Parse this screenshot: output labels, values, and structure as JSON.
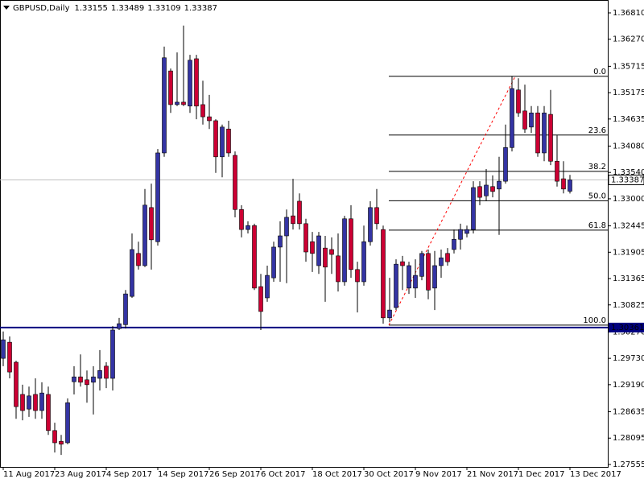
{
  "chart_data": {
    "type": "candlestick",
    "title": "GBPUSD,Daily",
    "categories": [
      "11 Aug 2017",
      null,
      null,
      null,
      null,
      null,
      null,
      null,
      "23 Aug 2017",
      null,
      null,
      null,
      null,
      null,
      null,
      null,
      "4 Sep 2017",
      null,
      null,
      null,
      null,
      null,
      null,
      null,
      "14 Sep 2017",
      null,
      null,
      null,
      null,
      null,
      null,
      null,
      "26 Sep 2017",
      null,
      null,
      null,
      null,
      null,
      null,
      null,
      "6 Oct 2017",
      null,
      null,
      null,
      null,
      null,
      null,
      null,
      "18 Oct 2017",
      null,
      null,
      null,
      null,
      null,
      null,
      null,
      "30 Oct 2017",
      null,
      null,
      null,
      null,
      null,
      null,
      null,
      "9 Nov 2017",
      null,
      null,
      null,
      null,
      null,
      null,
      null,
      "21 Nov 2017",
      null,
      null,
      null,
      null,
      null,
      null,
      null,
      "1 Dec 2017",
      null,
      null,
      null,
      null,
      null,
      null,
      null,
      "13 Dec 2017"
    ],
    "open": [
      1.2973,
      1.3006,
      1.2965,
      1.2899,
      1.2869,
      1.2899,
      1.2866,
      1.2899,
      1.2825,
      1.2803,
      1.28,
      1.2925,
      1.2935,
      1.2929,
      1.2924,
      1.2932,
      1.2957,
      1.2932,
      1.3034,
      1.3042,
      1.31,
      1.3188,
      1.3163,
      1.3282,
      1.3212,
      1.3394,
      1.3562,
      1.3493,
      1.3498,
      1.349,
      1.3587,
      1.3493,
      1.3468,
      1.346,
      1.3386,
      1.3443,
      1.3389,
      1.3278,
      1.3237,
      1.3245,
      1.312,
      1.3097,
      1.3138,
      1.3201,
      1.3224,
      1.3265,
      1.3295,
      1.3249,
      1.3212,
      1.3163,
      1.3199,
      1.3196,
      1.3183,
      1.313,
      1.3259,
      1.3155,
      1.313,
      1.3212,
      1.3282,
      1.3237,
      1.3056,
      1.3077,
      1.3171,
      1.3117,
      1.3117,
      1.3141,
      1.3188,
      1.3117,
      1.3163,
      1.3188,
      1.3196,
      1.3217,
      1.3229,
      1.3237,
      1.3325,
      1.3306,
      1.3325,
      1.332,
      1.3336,
      1.3405,
      1.3523,
      1.348,
      1.3447,
      1.3476,
      1.3394,
      1.3473,
      1.3377,
      1.3341,
      1.33155
    ],
    "high": [
      1.3028,
      1.3018,
      1.2968,
      1.2919,
      1.2915,
      1.2932,
      1.2924,
      1.2915,
      1.2841,
      1.2816,
      1.2891,
      1.2957,
      1.2981,
      1.2948,
      1.2957,
      1.299,
      1.2965,
      1.3039,
      1.3056,
      1.3113,
      1.3229,
      1.3212,
      1.332,
      1.3331,
      1.3402,
      1.3612,
      1.3567,
      1.36,
      1.3655,
      1.3595,
      1.3595,
      1.3542,
      1.3513,
      1.3463,
      1.3452,
      1.346,
      1.3397,
      1.3287,
      1.3254,
      1.3249,
      1.3146,
      1.3163,
      1.3212,
      1.3254,
      1.3278,
      1.3341,
      1.3311,
      1.3259,
      1.3232,
      1.3232,
      1.3224,
      1.3221,
      1.3229,
      1.3265,
      1.3287,
      1.3171,
      1.3245,
      1.3295,
      1.332,
      1.3245,
      1.3138,
      1.3176,
      1.3183,
      1.3171,
      1.3176,
      1.3193,
      1.3196,
      1.3193,
      1.3196,
      1.3199,
      1.3237,
      1.3249,
      1.3245,
      1.3336,
      1.3336,
      1.3361,
      1.3348,
      1.3386,
      1.3452,
      1.3551,
      1.3547,
      1.3534,
      1.349,
      1.349,
      1.349,
      1.3523,
      1.343,
      1.3377,
      1.33489
    ],
    "low": [
      1.2957,
      1.2932,
      1.2849,
      1.2846,
      1.2853,
      1.2849,
      1.2849,
      1.2816,
      1.278,
      1.2775,
      1.2797,
      1.2899,
      1.2915,
      1.2882,
      1.2858,
      1.2907,
      1.2912,
      1.2907,
      1.3031,
      1.3034,
      1.3097,
      1.3155,
      1.316,
      1.3155,
      1.3204,
      1.3386,
      1.3476,
      1.349,
      1.349,
      1.3476,
      1.3463,
      1.3452,
      1.3443,
      1.3353,
      1.3344,
      1.3386,
      1.3262,
      1.3221,
      1.3229,
      1.3113,
      1.3031,
      1.3089,
      1.313,
      1.313,
      1.3127,
      1.3237,
      1.3237,
      1.3171,
      1.315,
      1.3146,
      1.3089,
      1.3146,
      1.311,
      1.3122,
      1.3138,
      1.3067,
      1.3122,
      1.3204,
      1.3237,
      1.3044,
      1.3047,
      1.3072,
      1.3113,
      1.3105,
      1.3097,
      1.3133,
      1.3094,
      1.3072,
      1.3138,
      1.3163,
      1.3188,
      1.3196,
      1.3221,
      1.3229,
      1.3287,
      1.3295,
      1.3303,
      1.3226,
      1.3331,
      1.3397,
      1.3468,
      1.3435,
      1.3435,
      1.3386,
      1.3377,
      1.3369,
      1.3325,
      1.3311,
      1.33109
    ],
    "close": [
      1.3011,
      1.2945,
      1.2874,
      1.2866,
      1.2896,
      1.2866,
      1.2902,
      1.2825,
      1.28,
      1.2797,
      1.2882,
      1.2935,
      1.2924,
      1.2919,
      1.2935,
      1.2948,
      1.2932,
      1.3031,
      1.3044,
      1.3105,
      1.3196,
      1.3163,
      1.3287,
      1.3216,
      1.3394,
      1.3589,
      1.3493,
      1.3498,
      1.3493,
      1.3584,
      1.349,
      1.3468,
      1.346,
      1.3386,
      1.3447,
      1.3394,
      1.3278,
      1.3237,
      1.3245,
      1.3117,
      1.3069,
      1.3143,
      1.3201,
      1.3224,
      1.3262,
      1.3249,
      1.3249,
      1.3191,
      1.3188,
      1.3224,
      1.316,
      1.3186,
      1.313,
      1.3259,
      1.3155,
      1.313,
      1.3212,
      1.3282,
      1.3249,
      1.3056,
      1.3072,
      1.3166,
      1.3163,
      1.3163,
      1.3143,
      1.3188,
      1.3113,
      1.3163,
      1.3179,
      1.3171,
      1.3217,
      1.3237,
      1.3237,
      1.3323,
      1.3303,
      1.3328,
      1.3315,
      1.3336,
      1.3405,
      1.3526,
      1.3476,
      1.3443,
      1.3476,
      1.3394,
      1.3476,
      1.3377,
      1.3336,
      1.332,
      1.33387
    ],
    "up_color": "#3434a4",
    "down_color": "#cc0033",
    "ylim": [
      1.27505,
      1.37074
    ],
    "yticks": [
      {
        "value": 1.3681,
        "label": "1.36810"
      },
      {
        "value": 1.3627,
        "label": "1.36270"
      },
      1.35715,
      1.35175,
      1.34635,
      {
        "value": 1.3408,
        "label": "1.34080"
      },
      {
        "value": 1.3354,
        "label": "1.33540"
      },
      {
        "value": 1.33,
        "label": "1.33000"
      },
      1.32445,
      1.31905,
      1.31365,
      1.30825,
      {
        "value": 1.3027,
        "label": "1.30270"
      },
      {
        "value": 1.2973,
        "label": "1.29730"
      },
      {
        "value": 1.2919,
        "label": "1.29190"
      },
      1.28635,
      1.28095,
      1.27555
    ],
    "grid": false,
    "hline": {
      "value": 1.30361,
      "color": "#000080"
    },
    "fib": {
      "high": 1.3551,
      "low": 1.3041,
      "color": "#000000",
      "trend_color": "#ff0000",
      "levels": [
        {
          "value": 0,
          "label": "0.0"
        },
        23.6,
        38.2,
        {
          "value": 50,
          "label": "50.0"
        },
        61.8,
        {
          "value": 100,
          "label": "100.0"
        }
      ]
    }
  }
}
